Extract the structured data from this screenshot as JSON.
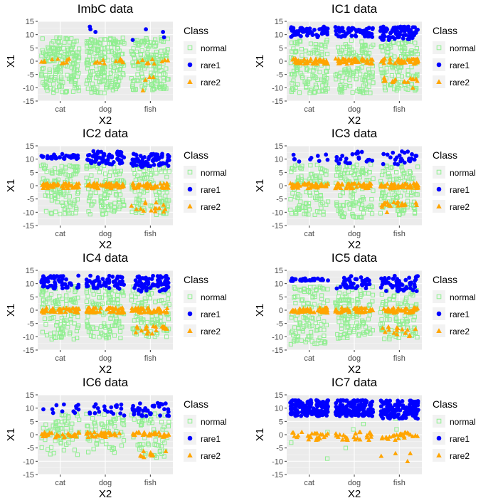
{
  "colors": {
    "normal": "#90EE90",
    "rare1": "#0000FF",
    "rare2": "#FFA500",
    "panel_bg": "#EBEBEB",
    "grid_major": "#FFFFFF",
    "tick_text": "#4D4D4D"
  },
  "legend": {
    "title": "Class",
    "entries": [
      {
        "label": "normal",
        "shape": "open-square",
        "color": "#90EE90"
      },
      {
        "label": "rare1",
        "shape": "filled-circle",
        "color": "#0000FF"
      },
      {
        "label": "rare2",
        "shape": "filled-triangle",
        "color": "#FFA500"
      }
    ]
  },
  "chart_data": [
    {
      "type": "scatter",
      "title": "ImbC data",
      "xlabel": "X2",
      "ylabel": "X1",
      "categories": [
        "cat",
        "dog",
        "fish"
      ],
      "ylim": [
        -15,
        15
      ],
      "yticks": [
        -15,
        -10,
        -5,
        0,
        5,
        10,
        15
      ],
      "series": [
        {
          "name": "normal",
          "clusters": [
            {
              "cat": [
                -12,
                9,
                180
              ]
            },
            {
              "dog": [
                -12,
                9,
                180
              ]
            },
            {
              "fish": [
                -11,
                9,
                160
              ]
            }
          ]
        },
        {
          "name": "rare1",
          "points": [
            [
              "dog",
              12
            ],
            [
              "dog",
              13
            ],
            [
              "dog",
              11
            ],
            [
              "fish",
              11
            ],
            [
              "fish",
              12
            ],
            [
              "fish",
              9
            ],
            [
              "fish",
              8
            ]
          ]
        },
        {
          "name": "rare2",
          "clusters": [
            {
              "cat": [
                -1,
                1,
                10
              ]
            },
            {
              "dog": [
                -1,
                1,
                10
              ]
            },
            {
              "fish": [
                -1,
                1,
                10
              ]
            }
          ],
          "points": [
            [
              "fish",
              -6
            ],
            [
              "fish",
              -7
            ],
            [
              "fish",
              -11
            ],
            [
              "fish",
              -6
            ]
          ]
        }
      ]
    },
    {
      "type": "scatter",
      "title": "IC1 data",
      "xlabel": "X2",
      "ylabel": "X1",
      "categories": [
        "cat",
        "dog",
        "fish"
      ],
      "ylim": [
        -15,
        15
      ],
      "yticks": [
        -15,
        -10,
        -5,
        0,
        5,
        10,
        15
      ],
      "series": [
        {
          "name": "normal",
          "clusters": [
            {
              "cat": [
                -12,
                8,
                120
              ]
            },
            {
              "dog": [
                -12,
                8,
                120
              ]
            },
            {
              "fish": [
                -11,
                8,
                120
              ]
            }
          ]
        },
        {
          "name": "rare1",
          "clusters": [
            {
              "cat": [
                9,
                13,
                50
              ]
            },
            {
              "dog": [
                9,
                13,
                60
              ]
            },
            {
              "fish": [
                8,
                13,
                80
              ]
            }
          ]
        },
        {
          "name": "rare2",
          "clusters": [
            {
              "cat": [
                -1,
                1,
                45
              ]
            },
            {
              "dog": [
                -1,
                1,
                45
              ]
            },
            {
              "fish": [
                -1,
                1,
                45
              ]
            },
            {
              "fish": [
                -8,
                -6,
                15
              ]
            }
          ],
          "points": [
            [
              "fish",
              -10
            ]
          ]
        }
      ]
    },
    {
      "type": "scatter",
      "title": "IC2 data",
      "xlabel": "X2",
      "ylabel": "X1",
      "categories": [
        "cat",
        "dog",
        "fish"
      ],
      "ylim": [
        -15,
        15
      ],
      "yticks": [
        -15,
        -10,
        -5,
        0,
        5,
        10,
        15
      ],
      "series": [
        {
          "name": "normal",
          "clusters": [
            {
              "cat": [
                -11,
                8,
                110
              ]
            },
            {
              "dog": [
                -11,
                8,
                110
              ]
            },
            {
              "fish": [
                -11,
                8,
                100
              ]
            }
          ]
        },
        {
          "name": "rare1",
          "clusters": [
            {
              "cat": [
                10,
                12,
                35
              ]
            },
            {
              "dog": [
                8,
                13,
                60
              ]
            },
            {
              "fish": [
                7,
                12,
                70
              ]
            }
          ]
        },
        {
          "name": "rare2",
          "clusters": [
            {
              "cat": [
                -1,
                1,
                45
              ]
            },
            {
              "dog": [
                -1,
                1,
                45
              ]
            },
            {
              "fish": [
                -1,
                1,
                45
              ]
            },
            {
              "fish": [
                -10,
                -6,
                15
              ]
            }
          ]
        }
      ]
    },
    {
      "type": "scatter",
      "title": "IC3 data",
      "xlabel": "X2",
      "ylabel": "X1",
      "categories": [
        "cat",
        "dog",
        "fish"
      ],
      "ylim": [
        -15,
        15
      ],
      "yticks": [
        -15,
        -10,
        -5,
        0,
        5,
        10,
        15
      ],
      "series": [
        {
          "name": "normal",
          "clusters": [
            {
              "cat": [
                -11,
                8,
                110
              ]
            },
            {
              "dog": [
                -12,
                8,
                110
              ]
            },
            {
              "fish": [
                -11,
                8,
                100
              ]
            }
          ]
        },
        {
          "name": "rare1",
          "clusters": [
            {
              "cat": [
                9,
                12,
                10
              ]
            },
            {
              "dog": [
                8,
                13,
                20
              ]
            },
            {
              "fish": [
                8,
                13,
                25
              ]
            }
          ]
        },
        {
          "name": "rare2",
          "clusters": [
            {
              "cat": [
                -1,
                1,
                45
              ]
            },
            {
              "dog": [
                -1,
                1,
                45
              ]
            },
            {
              "fish": [
                -1,
                1,
                45
              ]
            },
            {
              "fish": [
                -8,
                -6,
                20
              ]
            }
          ],
          "points": [
            [
              "fish",
              -10
            ]
          ]
        }
      ]
    },
    {
      "type": "scatter",
      "title": "IC4 data",
      "xlabel": "X2",
      "ylabel": "X1",
      "categories": [
        "cat",
        "dog",
        "fish"
      ],
      "ylim": [
        -15,
        15
      ],
      "yticks": [
        -15,
        -10,
        -5,
        0,
        5,
        10,
        15
      ],
      "series": [
        {
          "name": "normal",
          "clusters": [
            {
              "cat": [
                -11,
                9,
                110
              ]
            },
            {
              "dog": [
                -11,
                9,
                110
              ]
            },
            {
              "fish": [
                -10,
                9,
                100
              ]
            }
          ]
        },
        {
          "name": "rare1",
          "clusters": [
            {
              "cat": [
                8,
                13,
                55
              ]
            },
            {
              "dog": [
                8,
                13,
                60
              ]
            },
            {
              "fish": [
                7,
                13,
                70
              ]
            }
          ]
        },
        {
          "name": "rare2",
          "clusters": [
            {
              "cat": [
                -1,
                1,
                45
              ]
            },
            {
              "dog": [
                -1,
                1,
                45
              ]
            },
            {
              "fish": [
                -1,
                1,
                45
              ]
            },
            {
              "fish": [
                -9,
                -6,
                20
              ]
            }
          ]
        }
      ]
    },
    {
      "type": "scatter",
      "title": "IC5 data",
      "xlabel": "X2",
      "ylabel": "X1",
      "categories": [
        "cat",
        "dog",
        "fish"
      ],
      "ylim": [
        -15,
        15
      ],
      "yticks": [
        -15,
        -10,
        -5,
        0,
        5,
        10,
        15
      ],
      "series": [
        {
          "name": "normal",
          "clusters": [
            {
              "cat": [
                -13,
                9,
                110
              ]
            },
            {
              "dog": [
                -11,
                9,
                110
              ]
            },
            {
              "fish": [
                -11,
                9,
                100
              ]
            }
          ]
        },
        {
          "name": "rare1",
          "clusters": [
            {
              "cat": [
                11,
                12,
                30
              ]
            },
            {
              "dog": [
                8,
                13,
                40
              ]
            },
            {
              "fish": [
                7,
                13,
                55
              ]
            }
          ]
        },
        {
          "name": "rare2",
          "clusters": [
            {
              "cat": [
                -1,
                1,
                45
              ]
            },
            {
              "dog": [
                -1,
                1,
                45
              ]
            },
            {
              "fish": [
                -1,
                1,
                45
              ]
            },
            {
              "fish": [
                -10,
                -6,
                15
              ]
            }
          ]
        }
      ]
    },
    {
      "type": "scatter",
      "title": "IC6 data",
      "xlabel": "X2",
      "ylabel": "X1",
      "categories": [
        "cat",
        "dog",
        "fish"
      ],
      "ylim": [
        -15,
        15
      ],
      "yticks": [
        -15,
        -10,
        -5,
        0,
        5,
        10,
        15
      ],
      "series": [
        {
          "name": "normal",
          "clusters": [
            {
              "cat": [
                -8,
                8,
                60
              ]
            },
            {
              "dog": [
                -7,
                8,
                60
              ]
            },
            {
              "fish": [
                -9,
                8,
                60
              ]
            }
          ]
        },
        {
          "name": "rare1",
          "clusters": [
            {
              "cat": [
                8,
                12,
                12
              ]
            },
            {
              "dog": [
                7,
                12,
                20
              ]
            },
            {
              "fish": [
                7,
                12,
                40
              ]
            }
          ]
        },
        {
          "name": "rare2",
          "clusters": [
            {
              "cat": [
                -1,
                1,
                30
              ]
            },
            {
              "dog": [
                -1,
                1,
                30
              ]
            },
            {
              "fish": [
                -1,
                1,
                30
              ]
            },
            {
              "fish": [
                -9,
                -6,
                10
              ]
            }
          ]
        }
      ]
    },
    {
      "type": "scatter",
      "title": "IC7 data",
      "xlabel": "X2",
      "ylabel": "X1",
      "categories": [
        "cat",
        "dog",
        "fish"
      ],
      "ylim": [
        -15,
        15
      ],
      "yticks": [
        -15,
        -10,
        -5,
        0,
        5,
        10,
        15
      ],
      "series": [
        {
          "name": "normal",
          "points": [
            [
              "cat",
              -9
            ],
            [
              "cat",
              -3
            ],
            [
              "cat",
              1
            ],
            [
              "dog",
              -5
            ],
            [
              "dog",
              4
            ],
            [
              "dog",
              2
            ],
            [
              "fish",
              2
            ],
            [
              "fish",
              -1
            ],
            [
              "fish",
              6
            ]
          ]
        },
        {
          "name": "rare1",
          "clusters": [
            {
              "cat": [
                7,
                13,
                140
              ]
            },
            {
              "dog": [
                7,
                13,
                140
              ]
            },
            {
              "fish": [
                6,
                13,
                140
              ]
            }
          ]
        },
        {
          "name": "rare2",
          "clusters": [
            {
              "cat": [
                -2,
                1,
                25
              ]
            },
            {
              "dog": [
                -2,
                1,
                25
              ]
            },
            {
              "fish": [
                -2,
                1,
                25
              ]
            }
          ],
          "points": [
            [
              "fish",
              -7
            ],
            [
              "fish",
              -8
            ],
            [
              "fish",
              -10
            ],
            [
              "fish",
              -7
            ]
          ]
        }
      ]
    }
  ]
}
